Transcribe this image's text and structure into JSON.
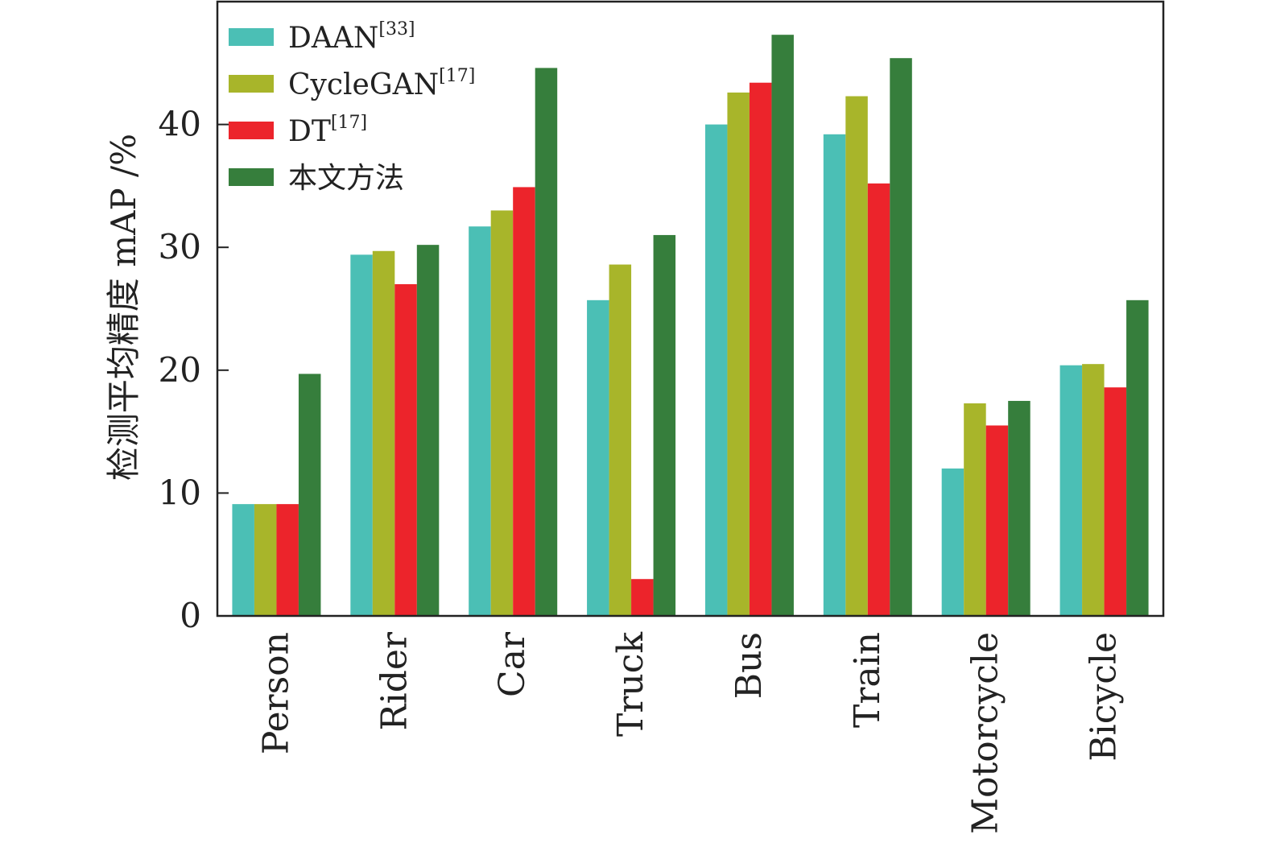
{
  "chart_data": {
    "type": "bar",
    "ylabel": "检测平均精度 mAP /%",
    "ylim": [
      0,
      50
    ],
    "yticks": [
      0,
      10,
      20,
      30,
      40
    ],
    "grid": false,
    "legend_position": "top-left",
    "categories": [
      "Person",
      "Rider",
      "Car",
      "Truck",
      "Bus",
      "Train",
      "Motorcycle",
      "Bicycle"
    ],
    "series": [
      {
        "name": "DAAN",
        "sup": "[33]",
        "color": "#4bbfb5",
        "values": [
          9.1,
          29.4,
          31.7,
          25.7,
          40.0,
          39.2,
          12.0,
          20.4
        ]
      },
      {
        "name": "CycleGAN",
        "sup": "[17]",
        "color": "#a8b52a",
        "values": [
          9.1,
          29.7,
          33.0,
          28.6,
          42.6,
          42.3,
          17.3,
          20.5
        ]
      },
      {
        "name": "DT",
        "sup": "[17]",
        "color": "#ec242b",
        "values": [
          9.1,
          27.0,
          34.9,
          3.0,
          43.4,
          35.2,
          15.5,
          18.6
        ]
      },
      {
        "name": "本文方法",
        "sup": "",
        "color": "#367e3c",
        "values": [
          19.7,
          30.2,
          44.6,
          31.0,
          47.3,
          45.4,
          17.5,
          25.7
        ]
      }
    ]
  }
}
